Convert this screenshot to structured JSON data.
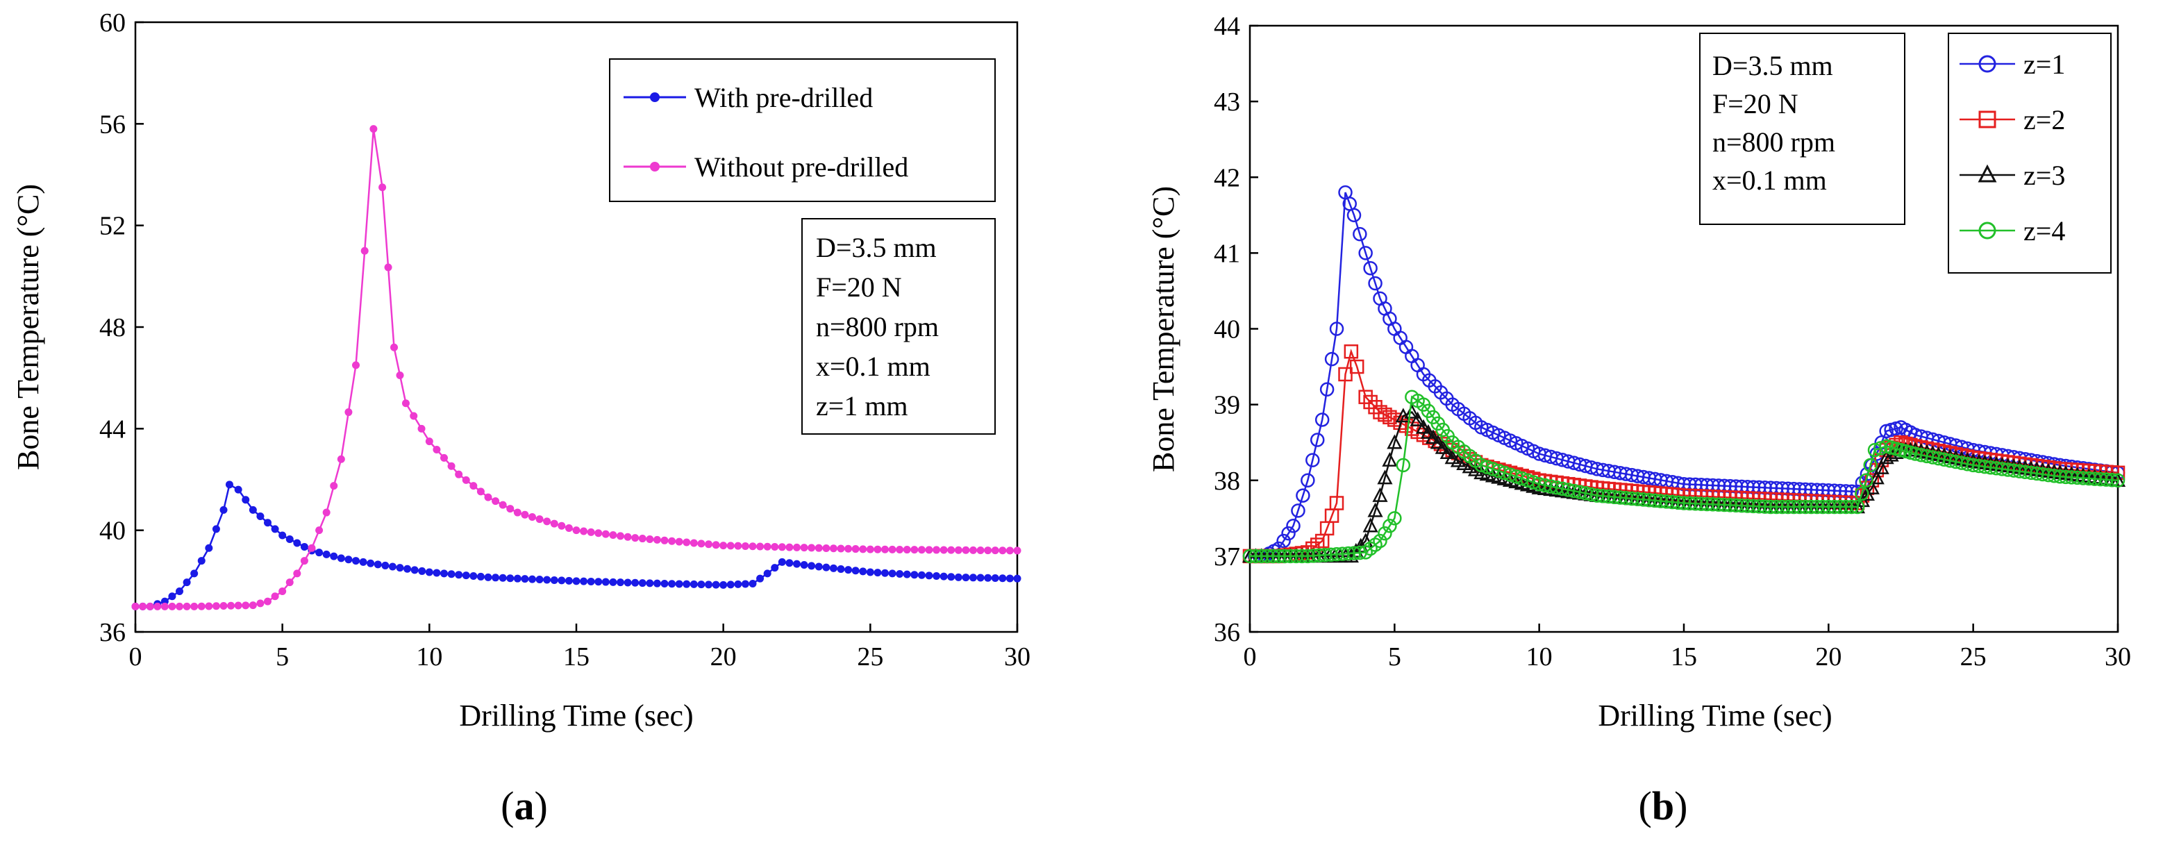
{
  "chart_data": [
    {
      "id": "a",
      "panel_label_open": "(",
      "panel_label": "a",
      "panel_label_close": ")",
      "type": "line",
      "xlabel": "Drilling Time (sec)",
      "ylabel": "Bone Temperature (°C)",
      "xlim": [
        0,
        30
      ],
      "ylim": [
        36,
        60
      ],
      "xticks": [
        0,
        5,
        10,
        15,
        20,
        25,
        30
      ],
      "yticks": [
        36,
        40,
        44,
        48,
        52,
        56,
        60
      ],
      "grid": false,
      "legend": "top-right",
      "params": [
        "D=3.5 mm",
        "F=20 N",
        "n=800 rpm",
        "x=0.1 mm",
        "z=1 mm"
      ],
      "series": [
        {
          "name": "With pre-drilled",
          "color": "#1a1ae6",
          "marker": "dot",
          "x": [
            0,
            0.5,
            1,
            1.5,
            2,
            2.5,
            3,
            3.2,
            3.5,
            4,
            5,
            6,
            7,
            8,
            10,
            12,
            15,
            18,
            20,
            21,
            21.5,
            22,
            23,
            25,
            28,
            30
          ],
          "y": [
            37.0,
            37.0,
            37.2,
            37.6,
            38.3,
            39.3,
            40.8,
            41.8,
            41.6,
            40.8,
            39.8,
            39.2,
            38.9,
            38.7,
            38.35,
            38.15,
            38.0,
            37.9,
            37.85,
            37.9,
            38.3,
            38.75,
            38.6,
            38.35,
            38.15,
            38.1
          ]
        },
        {
          "name": "Without pre-drilled",
          "color": "#ee3ad0",
          "marker": "dot",
          "x": [
            0,
            2,
            4,
            4.5,
            5,
            5.5,
            6,
            6.5,
            7,
            7.5,
            7.8,
            8.1,
            8.4,
            8.8,
            9.2,
            10,
            11,
            12,
            13,
            15,
            17,
            20,
            25,
            30
          ],
          "y": [
            37.0,
            37.0,
            37.05,
            37.2,
            37.6,
            38.3,
            39.3,
            40.7,
            42.8,
            46.5,
            51.0,
            55.8,
            53.5,
            47.2,
            45.0,
            43.5,
            42.2,
            41.3,
            40.7,
            40.0,
            39.7,
            39.4,
            39.25,
            39.2
          ]
        }
      ]
    },
    {
      "id": "b",
      "panel_label_open": "(",
      "panel_label": "b",
      "panel_label_close": ")",
      "type": "line",
      "xlabel": "Drilling Time (sec)",
      "ylabel": "Bone Temperature (°C)",
      "xlim": [
        0,
        30
      ],
      "ylim": [
        36,
        44
      ],
      "xticks": [
        0,
        5,
        10,
        15,
        20,
        25,
        30
      ],
      "yticks": [
        36,
        37,
        38,
        39,
        40,
        41,
        42,
        43,
        44
      ],
      "grid": false,
      "legend": "top-right",
      "params": [
        "D=3.5 mm",
        "F=20 N",
        "n=800 rpm",
        "x=0.1 mm"
      ],
      "series": [
        {
          "name": "z=1",
          "color": "#2323e0",
          "marker": "circle",
          "x": [
            0,
            0.5,
            1,
            1.5,
            2,
            2.5,
            3,
            3.3,
            3.6,
            4,
            4.5,
            5,
            6,
            7,
            8,
            10,
            12,
            15,
            18,
            21,
            21.5,
            22,
            22.5,
            23,
            25,
            28,
            30
          ],
          "y": [
            37.0,
            37.0,
            37.1,
            37.4,
            38.0,
            38.8,
            40.0,
            41.8,
            41.5,
            41.0,
            40.4,
            40.0,
            39.4,
            39.0,
            38.7,
            38.35,
            38.15,
            37.95,
            37.9,
            37.85,
            38.2,
            38.65,
            38.7,
            38.6,
            38.4,
            38.2,
            38.1
          ]
        },
        {
          "name": "z=2",
          "color": "#e51f1f",
          "marker": "square",
          "x": [
            0,
            1,
            2,
            2.5,
            3,
            3.3,
            3.5,
            3.7,
            4,
            4.5,
            5,
            6,
            7,
            8,
            10,
            12,
            15,
            18,
            21,
            21.5,
            22,
            22.5,
            23,
            25,
            28,
            30
          ],
          "y": [
            37.0,
            37.0,
            37.05,
            37.2,
            37.7,
            39.4,
            39.7,
            39.5,
            39.1,
            38.9,
            38.8,
            38.6,
            38.4,
            38.2,
            38.0,
            37.9,
            37.8,
            37.75,
            37.7,
            38.0,
            38.4,
            38.5,
            38.45,
            38.3,
            38.15,
            38.1
          ]
        },
        {
          "name": "z=3",
          "color": "#111111",
          "marker": "triangle",
          "x": [
            0,
            2,
            3.5,
            4,
            4.5,
            5,
            5.3,
            5.6,
            6,
            6.5,
            7,
            8,
            10,
            12,
            15,
            18,
            21,
            21.5,
            22,
            22.5,
            23,
            25,
            28,
            30
          ],
          "y": [
            37.0,
            37.0,
            37.0,
            37.2,
            37.8,
            38.5,
            38.85,
            38.9,
            38.7,
            38.5,
            38.3,
            38.1,
            37.9,
            37.8,
            37.7,
            37.65,
            37.65,
            37.9,
            38.3,
            38.4,
            38.4,
            38.25,
            38.1,
            38.0
          ]
        },
        {
          "name": "z=4",
          "color": "#22c02a",
          "marker": "circle",
          "x": [
            0,
            2,
            4,
            4.5,
            5,
            5.3,
            5.6,
            6,
            6.5,
            7,
            8,
            10,
            12,
            15,
            18,
            21,
            21.3,
            21.6,
            22,
            22.5,
            23,
            25,
            28,
            30
          ],
          "y": [
            37.0,
            37.0,
            37.05,
            37.2,
            37.5,
            38.2,
            39.1,
            39.0,
            38.75,
            38.5,
            38.2,
            37.95,
            37.8,
            37.7,
            37.65,
            37.65,
            38.0,
            38.4,
            38.45,
            38.4,
            38.35,
            38.2,
            38.05,
            38.0
          ]
        }
      ]
    }
  ]
}
